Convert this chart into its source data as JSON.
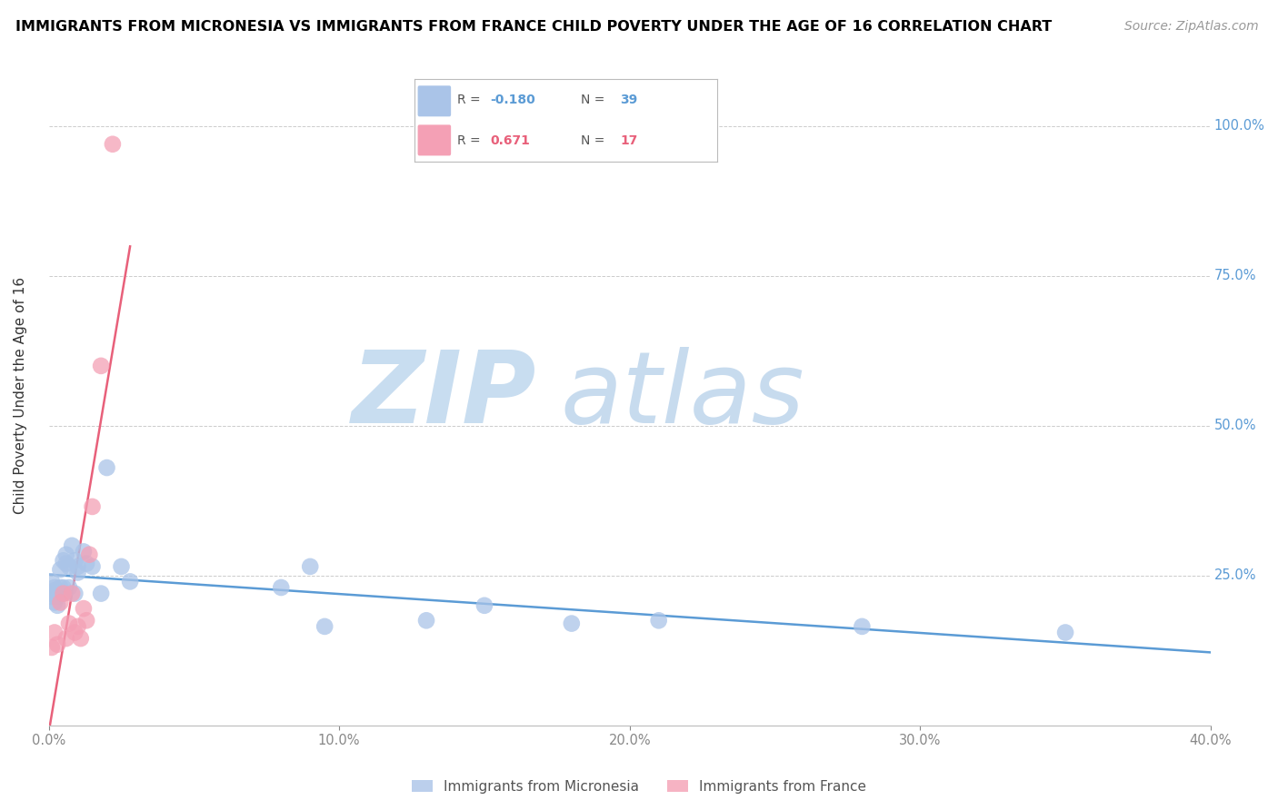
{
  "title": "IMMIGRANTS FROM MICRONESIA VS IMMIGRANTS FROM FRANCE CHILD POVERTY UNDER THE AGE OF 16 CORRELATION CHART",
  "source": "Source: ZipAtlas.com",
  "ylabel": "Child Poverty Under the Age of 16",
  "micronesia_R": -0.18,
  "micronesia_N": 39,
  "france_R": 0.671,
  "france_N": 17,
  "micronesia_color": "#aac4e8",
  "france_color": "#f4a0b5",
  "micronesia_line_color": "#5b9bd5",
  "france_line_color": "#e8607a",
  "legend_micronesia": "Immigrants from Micronesia",
  "legend_france": "Immigrants from France",
  "xlim": [
    0.0,
    0.4
  ],
  "ylim": [
    0.0,
    1.1
  ],
  "micronesia_x": [
    0.0005,
    0.001,
    0.001,
    0.002,
    0.002,
    0.002,
    0.003,
    0.003,
    0.003,
    0.004,
    0.004,
    0.005,
    0.005,
    0.005,
    0.006,
    0.006,
    0.007,
    0.007,
    0.008,
    0.009,
    0.009,
    0.01,
    0.01,
    0.012,
    0.013,
    0.015,
    0.018,
    0.02,
    0.025,
    0.028,
    0.08,
    0.09,
    0.095,
    0.13,
    0.15,
    0.18,
    0.21,
    0.28,
    0.35
  ],
  "micronesia_y": [
    0.22,
    0.24,
    0.215,
    0.23,
    0.225,
    0.205,
    0.22,
    0.215,
    0.2,
    0.23,
    0.26,
    0.22,
    0.275,
    0.23,
    0.285,
    0.27,
    0.265,
    0.23,
    0.3,
    0.275,
    0.22,
    0.265,
    0.255,
    0.29,
    0.27,
    0.265,
    0.22,
    0.43,
    0.265,
    0.24,
    0.23,
    0.265,
    0.165,
    0.175,
    0.2,
    0.17,
    0.175,
    0.165,
    0.155
  ],
  "france_x": [
    0.001,
    0.002,
    0.003,
    0.004,
    0.005,
    0.006,
    0.007,
    0.008,
    0.009,
    0.01,
    0.011,
    0.012,
    0.013,
    0.014,
    0.015,
    0.018,
    0.022
  ],
  "france_y": [
    0.13,
    0.155,
    0.135,
    0.205,
    0.22,
    0.145,
    0.17,
    0.22,
    0.155,
    0.165,
    0.145,
    0.195,
    0.175,
    0.285,
    0.365,
    0.6,
    0.97
  ],
  "france_line_x": [
    0.0,
    0.028
  ],
  "micronesia_line_x": [
    0.0,
    0.4
  ]
}
